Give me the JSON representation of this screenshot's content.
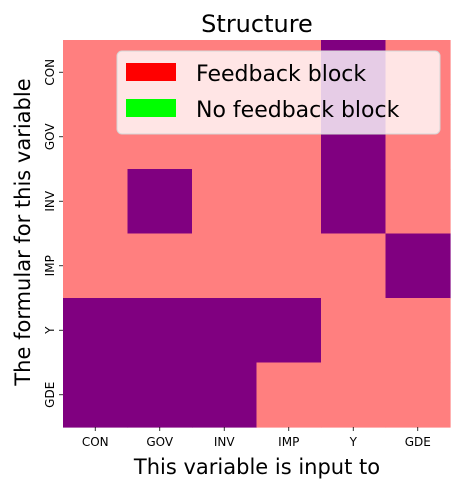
{
  "chart_data": {
    "type": "heatmap",
    "title": "Structure",
    "xlabel": "This variable is input to",
    "ylabel": "The formular for this variable",
    "x_categories": [
      "CON",
      "GOV",
      "INV",
      "IMP",
      "Y",
      "GDE"
    ],
    "y_categories": [
      "CON",
      "GOV",
      "INV",
      "IMP",
      "Y",
      "GDE"
    ],
    "matrix": [
      [
        0,
        0,
        0,
        0,
        1,
        0
      ],
      [
        0,
        0,
        0,
        0,
        1,
        0
      ],
      [
        0,
        1,
        0,
        0,
        1,
        0
      ],
      [
        0,
        0,
        0,
        0,
        0,
        1
      ],
      [
        1,
        1,
        1,
        1,
        0,
        0
      ],
      [
        1,
        1,
        1,
        0,
        0,
        0
      ]
    ],
    "value_colors": {
      "0": "#ff7f7f",
      "1": "#800080"
    },
    "legend": {
      "placement": "top-right",
      "entries": [
        {
          "label": "Feedback block",
          "color": "#ff0000"
        },
        {
          "label": "No feedback block",
          "color": "#00ff00"
        }
      ]
    },
    "grid": false
  }
}
